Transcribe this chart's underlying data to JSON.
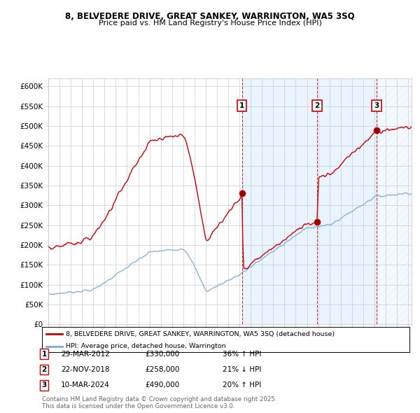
{
  "title1": "8, BELVEDERE DRIVE, GREAT SANKEY, WARRINGTON, WA5 3SQ",
  "title2": "Price paid vs. HM Land Registry's House Price Index (HPI)",
  "ylim": [
    0,
    620000
  ],
  "yticks": [
    0,
    50000,
    100000,
    150000,
    200000,
    250000,
    300000,
    350000,
    400000,
    450000,
    500000,
    550000,
    600000
  ],
  "xlim_start": 1995.0,
  "xlim_end": 2027.3,
  "legend_line1": "8, BELVEDERE DRIVE, GREAT SANKEY, WARRINGTON, WA5 3SQ (detached house)",
  "legend_line2": "HPI: Average price, detached house, Warrington",
  "events": [
    {
      "num": 1,
      "x": 2012.23,
      "date": "29-MAR-2012",
      "price": "£330,000",
      "hpi": "36% ↑ HPI"
    },
    {
      "num": 2,
      "x": 2018.9,
      "date": "22-NOV-2018",
      "price": "£258,000",
      "hpi": "21% ↓ HPI"
    },
    {
      "num": 3,
      "x": 2024.19,
      "date": "10-MAR-2024",
      "price": "£490,000",
      "hpi": "20% ↑ HPI"
    }
  ],
  "red_color": "#cc0000",
  "blue_color": "#7aadd4",
  "shade_color": "#ddeeff",
  "background_color": "#ffffff",
  "grid_color": "#cccccc",
  "footer": "Contains HM Land Registry data © Crown copyright and database right 2025.\nThis data is licensed under the Open Government Licence v3.0."
}
